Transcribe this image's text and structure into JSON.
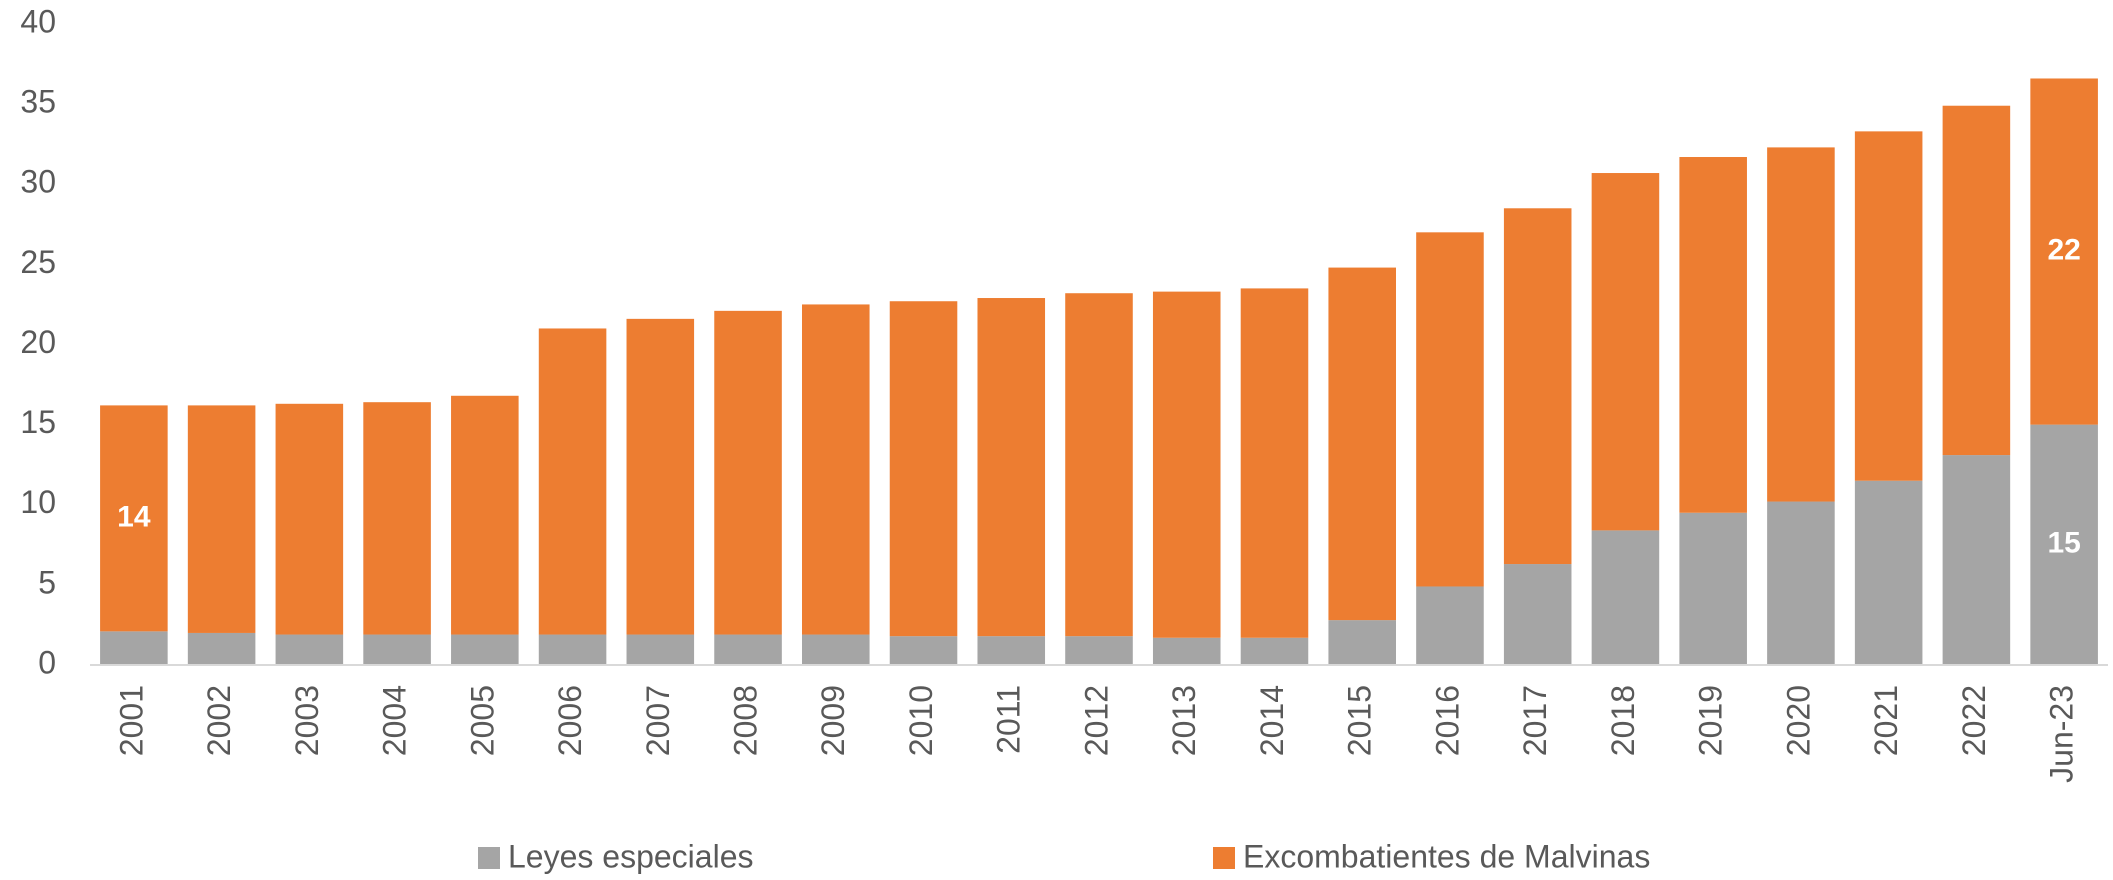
{
  "chart_data": {
    "type": "stacked_bar",
    "categories": [
      "2001",
      "2002",
      "2003",
      "2004",
      "2005",
      "2006",
      "2007",
      "2008",
      "2009",
      "2010",
      "2011",
      "2012",
      "2013",
      "2014",
      "2015",
      "2016",
      "2017",
      "2018",
      "2019",
      "2020",
      "2021",
      "2022",
      "Jun-23"
    ],
    "series": [
      {
        "name": "Leyes especiales",
        "color": "#a5a5a5",
        "values": [
          2.1,
          2.0,
          1.9,
          1.9,
          1.9,
          1.9,
          1.9,
          1.9,
          1.9,
          1.8,
          1.8,
          1.8,
          1.7,
          1.7,
          2.8,
          4.9,
          6.3,
          8.4,
          9.5,
          10.2,
          11.5,
          13.1,
          15.0
        ],
        "value_labels": [
          null,
          null,
          null,
          null,
          null,
          null,
          null,
          null,
          null,
          null,
          null,
          null,
          null,
          null,
          null,
          null,
          null,
          null,
          null,
          null,
          null,
          null,
          "15"
        ]
      },
      {
        "name": "Excombatientes de Malvinas",
        "color": "#ed7d31",
        "values": [
          14.1,
          14.2,
          14.4,
          14.5,
          14.9,
          19.1,
          19.7,
          20.2,
          20.6,
          20.9,
          21.1,
          21.4,
          21.6,
          21.8,
          22.0,
          22.1,
          22.2,
          22.3,
          22.2,
          22.1,
          21.8,
          21.8,
          21.6
        ],
        "value_labels": [
          "14",
          null,
          null,
          null,
          null,
          null,
          null,
          null,
          null,
          null,
          null,
          null,
          null,
          null,
          null,
          null,
          null,
          null,
          null,
          null,
          null,
          null,
          "22"
        ]
      }
    ],
    "ylim": [
      0,
      40
    ],
    "yticks": [
      0,
      5,
      10,
      15,
      20,
      25,
      30,
      35,
      40
    ],
    "grid": false,
    "legend": "bottom"
  }
}
